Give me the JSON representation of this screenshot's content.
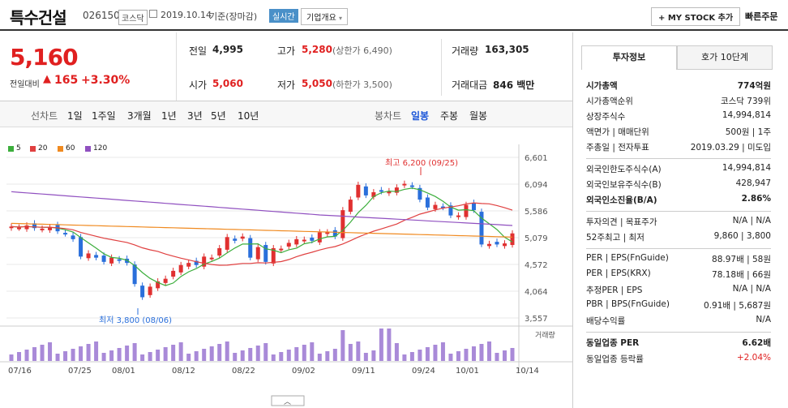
{
  "header": {
    "name": "특수건설",
    "code": "026150",
    "market": "코스닥",
    "date": "2019.10.14",
    "basis": "기준(장마감)",
    "realtime": "실시간",
    "company_info": "기업개요",
    "mystock": "+ MY STOCK 추가",
    "quick_order": "빠른주문"
  },
  "price": {
    "current": "5,160",
    "change_label": "전일대비",
    "change": "165",
    "change_pct": "+3.30%"
  },
  "summary": {
    "prev_label": "전일",
    "prev": "4,995",
    "high_label": "고가",
    "high": "5,280",
    "upper": "(상한가 6,490)",
    "volume_label": "거래량",
    "volume": "163,305",
    "open_label": "시가",
    "open": "5,060",
    "low_label": "저가",
    "low": "5,050",
    "lower": "(하한가 3,500)",
    "amount_label": "거래대금",
    "amount": "846 백만"
  },
  "chart_tabs": {
    "line_label": "선차트",
    "periods": [
      "1일",
      "1주일",
      "3개월",
      "1년",
      "3년",
      "5년",
      "10년"
    ],
    "candle_label": "봉차트",
    "candles": [
      "일봉",
      "주봉",
      "월봉"
    ]
  },
  "legend": [
    {
      "label": "5",
      "color": "#3cae3c"
    },
    {
      "label": "20",
      "color": "#e04040"
    },
    {
      "label": "60",
      "color": "#f08a20"
    },
    {
      "label": "120",
      "color": "#9050c0"
    }
  ],
  "chart_data": {
    "type": "candlestick",
    "y_ticks": [
      "6,601",
      "6,094",
      "5,586",
      "5,079",
      "4,572",
      "4,064",
      "3,557"
    ],
    "x_ticks": [
      "07/16",
      "07/25",
      "08/01",
      "08/12",
      "08/22",
      "09/02",
      "09/11",
      "09/24",
      "10/01",
      "10/14"
    ],
    "ylim": [
      3557,
      6601
    ],
    "high_annotation": "최고 6,200 (09/25)",
    "low_annotation": "최저 3,800 (08/06)",
    "volume_label": "거래량"
  },
  "panel": {
    "tab1": "투자정보",
    "tab2": "호가 10단계",
    "rows1": [
      {
        "k": "시가총액",
        "v": "774억원",
        "bold": true
      },
      {
        "k": "시가총액순위",
        "v": "코스닥 739위"
      },
      {
        "k": "상장주식수",
        "v": "14,994,814"
      },
      {
        "k": "액면가 | 매매단위",
        "v": "500원 | 1주"
      },
      {
        "k": "주총일 | 전자투표",
        "v": "2019.03.29 | 미도입"
      }
    ],
    "rows2": [
      {
        "k": "외국인한도주식수(A)",
        "v": "14,994,814"
      },
      {
        "k": "외국인보유주식수(B)",
        "v": "428,947"
      },
      {
        "k": "외국인소진율(B/A)",
        "v": "2.86%",
        "bold": true
      }
    ],
    "rows3": [
      {
        "k": "투자의견 | 목표주가",
        "v": "N/A | N/A"
      },
      {
        "k": "52주최고 | 최저",
        "v": "9,860 | 3,800"
      }
    ],
    "rows4": [
      {
        "k": "PER | EPS(FnGuide)",
        "v": "88.97배 | 58원"
      },
      {
        "k": "PER | EPS(KRX)",
        "v": "78.18배 | 66원"
      },
      {
        "k": "추정PER | EPS",
        "v": "N/A | N/A"
      },
      {
        "k": "PBR | BPS(FnGuide)",
        "v": "0.91배 | 5,687원"
      },
      {
        "k": "배당수익률",
        "v": "N/A"
      }
    ],
    "rows5": [
      {
        "k": "동일업종 PER",
        "v": "6.62배",
        "bold": true
      },
      {
        "k": "동일업종 등락률",
        "v": "+2.04%",
        "red": true
      }
    ]
  }
}
